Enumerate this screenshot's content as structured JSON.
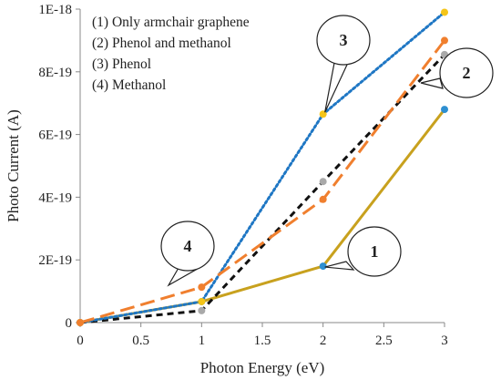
{
  "chart_data": {
    "type": "line",
    "title": "",
    "xlabel": "Photon Energy (eV)",
    "ylabel": "Photo Current (A)",
    "xlim": [
      0,
      3
    ],
    "ylim": [
      0,
      1e-18
    ],
    "x_ticks": [
      0,
      0.5,
      1,
      1.5,
      2,
      2.5,
      3
    ],
    "x_tick_labels": [
      "0",
      "0.5",
      "1",
      "1.5",
      "2",
      "2.5",
      "3"
    ],
    "y_ticks": [
      0,
      2e-19,
      4e-19,
      6e-19,
      8e-19,
      1e-18
    ],
    "y_tick_labels": [
      "0",
      "2E-19",
      "4E-19",
      "6E-19",
      "8E-19",
      "1E-18"
    ],
    "grid": false,
    "legend_position": "top-left",
    "x": [
      0,
      1,
      2,
      3
    ],
    "series": [
      {
        "name": "(1) Only armchair graphene",
        "callout": "1",
        "values": [
          0,
          6.7e-20,
          1.8e-19,
          6.8e-19
        ],
        "line_color": "#c8a11e",
        "marker_color": "#2e8fd1",
        "dash": "solid"
      },
      {
        "name": "(2) Phenol and methanol",
        "callout": "2",
        "values": [
          0,
          3.8e-20,
          4.5e-19,
          8.55e-19
        ],
        "line_color": "#111111",
        "marker_color": "#a9a9a9",
        "dash": "dashed"
      },
      {
        "name": "(3) Phenol",
        "callout": "3",
        "values": [
          0,
          6.7e-20,
          6.65e-19,
          9.9e-19
        ],
        "line_color": "#1f77c4",
        "marker_color": "#f5c518",
        "dash": "dotted"
      },
      {
        "name": "(4) Methanol",
        "callout": "4",
        "values": [
          0,
          1.13e-19,
          3.93e-19,
          9e-19
        ],
        "line_color": "#f07f2e",
        "marker_color": "#f07f2e",
        "dash": "longdash"
      }
    ]
  }
}
